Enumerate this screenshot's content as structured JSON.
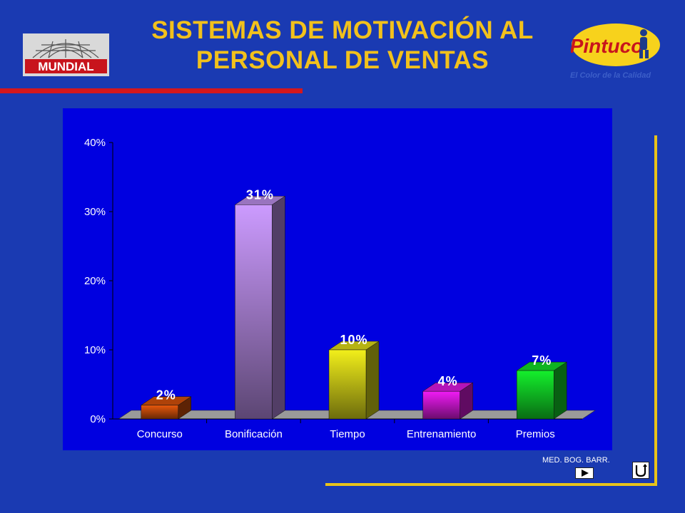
{
  "header": {
    "title_line1": "SISTEMAS DE MOTIVACIÓN AL",
    "title_line2": "PERSONAL DE VENTAS",
    "left_logo_text": "MUNDIAL",
    "right_logo_text": "Pintuco",
    "right_logo_slogan": "El Color de la Calidad"
  },
  "footer": {
    "text": "MED. BOG. BARR."
  },
  "colors": {
    "background": "#1a3ab2",
    "title": "#f2c11c",
    "accent_red": "#d4171d",
    "accent_gold": "#e8c21a",
    "plot_panel": "#0000e0"
  },
  "icons": {
    "next": "play-triangle-icon",
    "return": "return-arrow-icon"
  },
  "chart_data": {
    "type": "bar",
    "title": "",
    "xlabel": "",
    "ylabel": "",
    "categories": [
      "Concurso",
      "Bonificación",
      "Tiempo",
      "Entrenamiento",
      "Premios"
    ],
    "values": [
      2,
      31,
      10,
      4,
      7
    ],
    "data_labels": [
      "2%",
      "31%",
      "10%",
      "4%",
      "7%"
    ],
    "bar_colors": [
      "#e8580c",
      "#cc9bff",
      "#f2ef1a",
      "#f01bf5",
      "#14f02c"
    ],
    "ylim": [
      0,
      40
    ],
    "yticks": [
      "0%",
      "10%",
      "20%",
      "30%",
      "40%"
    ],
    "grid": false,
    "legend": "none"
  }
}
